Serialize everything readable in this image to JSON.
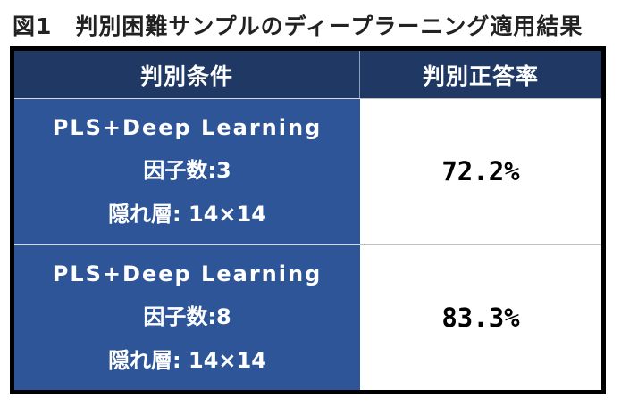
{
  "figure": {
    "title": "図1　判別困難サンプルのディープラーニング適用結果"
  },
  "table": {
    "headers": {
      "condition": "判別条件",
      "accuracy": "判別正答率"
    },
    "rows": [
      {
        "method": "PLS+Deep Learning",
        "factors": "因子数:3",
        "hidden": "隠れ層:  14×14",
        "accuracy": "72.2%"
      },
      {
        "method": "PLS+Deep Learning",
        "factors": "因子数:8",
        "hidden": "隠れ層:  14×14",
        "accuracy": "83.3%"
      }
    ]
  },
  "colors": {
    "header_bg": "#1f3864",
    "condition_bg": "#2e5597",
    "frame": "#000000"
  }
}
